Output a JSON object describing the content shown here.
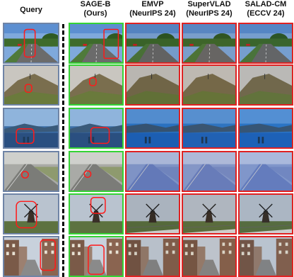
{
  "columns": [
    {
      "lines": [
        "Query"
      ]
    },
    {
      "lines": [
        "SAGE-B",
        "(Ours)"
      ]
    },
    {
      "lines": [
        "EMVP",
        "(NeurIPS 24)"
      ]
    },
    {
      "lines": [
        "SuperVLAD",
        "(NeurIPS 24)"
      ]
    },
    {
      "lines": [
        "SALAD-CM",
        "(ECCV 24)"
      ]
    }
  ],
  "colors": {
    "query_border": "#6f84a6",
    "correct_border": "#35d335",
    "wrong_border": "#e02222",
    "highlight": "#ff1a1a",
    "divider": "#000000"
  },
  "rows": [
    {
      "scene": "street",
      "results": [
        "correct",
        "wrong",
        "wrong",
        "wrong"
      ]
    },
    {
      "scene": "hill",
      "results": [
        "correct",
        "wrong",
        "wrong",
        "wrong"
      ]
    },
    {
      "scene": "sea",
      "results": [
        "correct",
        "wrong",
        "wrong",
        "wrong"
      ]
    },
    {
      "scene": "road",
      "results": [
        "correct",
        "wrong",
        "wrong",
        "wrong"
      ]
    },
    {
      "scene": "windmill",
      "results": [
        "correct",
        "wrong",
        "wrong",
        "wrong"
      ]
    },
    {
      "scene": "city",
      "results": [
        "correct",
        "wrong",
        "wrong",
        "wrong"
      ]
    }
  ]
}
